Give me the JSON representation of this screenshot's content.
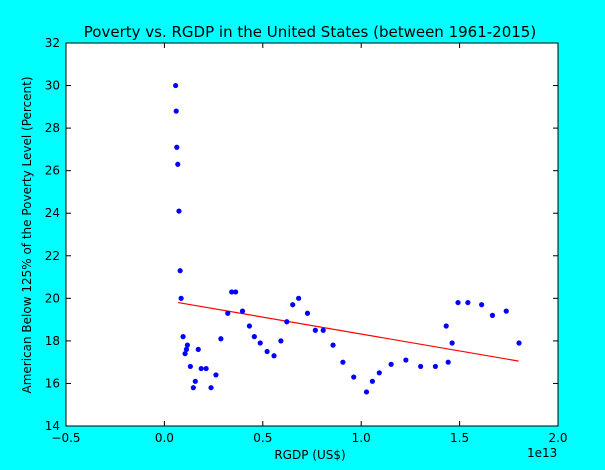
{
  "chart_data": {
    "type": "scatter",
    "title": "Poverty vs. RGDP in the United States (between 1961-2015)",
    "xlabel": "RGDP (US$)",
    "ylabel": "American Below 125% of the Poverty Level (Percent)",
    "x_offset_label": "1e13",
    "xlim": [
      -0.5,
      2.0
    ],
    "ylim": [
      14,
      32
    ],
    "x_ticks": [
      -0.5,
      0.0,
      0.5,
      1.0,
      1.5,
      2.0
    ],
    "x_tick_labels": [
      "−0.5",
      "0.0",
      "0.5",
      "1.0",
      "1.5",
      "2.0"
    ],
    "y_ticks": [
      14,
      16,
      18,
      20,
      22,
      24,
      26,
      28,
      30,
      32
    ],
    "y_tick_labels": [
      "14",
      "16",
      "18",
      "20",
      "22",
      "24",
      "26",
      "28",
      "30",
      "32"
    ],
    "grid": false,
    "point_color": "#0000ff",
    "line_color": "#ff0000",
    "series": [
      {
        "x": [
          0.057,
          0.06,
          0.063,
          0.068,
          0.074,
          0.08,
          0.085,
          0.095,
          0.105,
          0.112,
          0.117,
          0.132,
          0.147,
          0.157,
          0.172,
          0.187,
          0.212,
          0.237,
          0.262,
          0.287,
          0.322,
          0.342,
          0.362,
          0.397,
          0.432,
          0.457,
          0.487,
          0.522,
          0.557,
          0.592,
          0.622,
          0.652,
          0.682,
          0.727,
          0.767,
          0.807,
          0.857,
          0.907,
          0.962,
          1.027,
          1.057,
          1.092,
          1.152,
          1.227,
          1.302,
          1.377,
          1.432,
          1.442,
          1.462,
          1.492,
          1.542,
          1.612,
          1.667,
          1.737,
          1.802
        ],
        "y": [
          30.0,
          28.8,
          27.1,
          26.3,
          24.1,
          21.3,
          20.0,
          18.2,
          17.4,
          17.6,
          17.8,
          16.8,
          15.8,
          16.1,
          17.6,
          16.7,
          16.7,
          15.8,
          16.4,
          18.1,
          19.3,
          20.3,
          20.3,
          19.4,
          18.7,
          18.2,
          17.9,
          17.5,
          17.3,
          18.0,
          18.9,
          19.7,
          20.0,
          19.3,
          18.5,
          18.5,
          17.8,
          17.0,
          16.3,
          15.6,
          16.1,
          16.5,
          16.9,
          17.1,
          16.8,
          16.8,
          18.7,
          17.0,
          17.9,
          19.8,
          19.8,
          19.7,
          19.2,
          19.4,
          17.9
        ]
      }
    ],
    "trendline": {
      "x": [
        0.07,
        1.8
      ],
      "y": [
        19.8,
        17.05
      ]
    }
  }
}
